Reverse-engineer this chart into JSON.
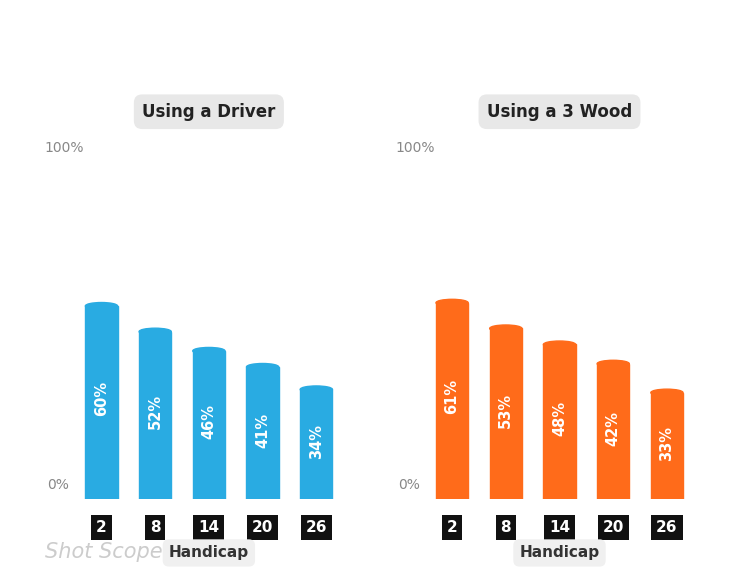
{
  "left_title": "Using a Driver",
  "right_title": "Using a 3 Wood",
  "categories": [
    "2",
    "8",
    "14",
    "20",
    "26"
  ],
  "driver_values": [
    60,
    52,
    46,
    41,
    34
  ],
  "wood_values": [
    61,
    53,
    48,
    42,
    33
  ],
  "bar_color_driver": "#29ABE2",
  "bar_color_wood": "#FF6B1A",
  "title_bg_color": "#E8E8E8",
  "label_pct_color": "#888888",
  "text_color_white": "#FFFFFF",
  "xlabel_color": "#333333",
  "tick_label_color": "#FFFFFF",
  "tick_bg_color": "#111111",
  "background_color": "#FFFFFF",
  "bar_width": 0.6,
  "ylim": [
    0,
    100
  ],
  "xlabel": "Handicap",
  "watermark": "Shot Scope",
  "watermark_color": "#CCCCCC",
  "label_100": "100%",
  "label_0": "0%"
}
